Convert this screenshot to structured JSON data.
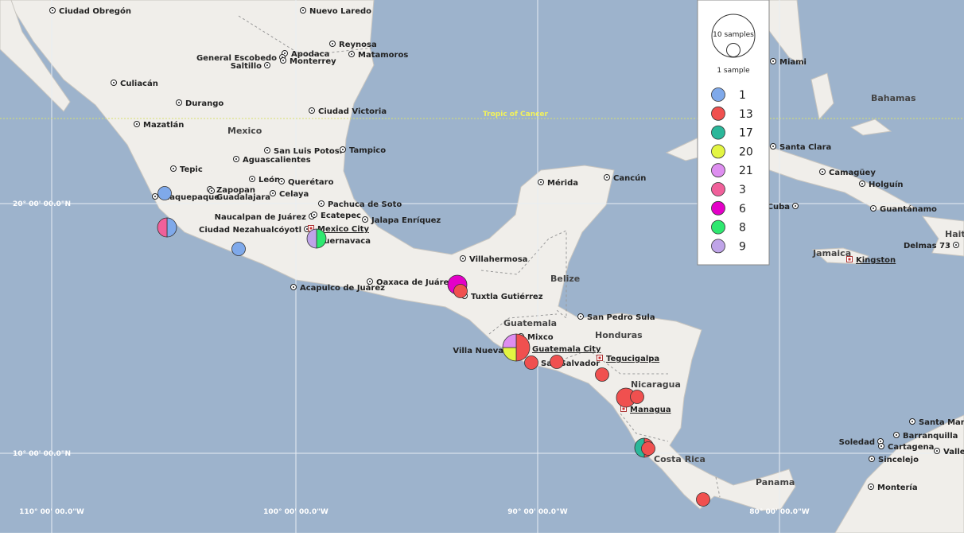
{
  "map": {
    "places": [
      "Ciudad Obregón",
      "Nuevo Laredo",
      "Reynosa",
      "Apodaca",
      "General Escobedo",
      "Monterrey",
      "Saltillo",
      "Matamoros",
      "Culiacán",
      "Durango",
      "Mazatlán",
      "Ciudad Victoria",
      "San Luis Potosí",
      "Tampico",
      "Aguascalientes",
      "Tepic",
      "Zapopan",
      "León",
      "Guadalajara",
      "Querétaro",
      "Celaya",
      "Tlaquepaque",
      "Pachuca de Soto",
      "Naucalpan de Juárez",
      "Ecatepec",
      "Jalapa Enríquez",
      "Ciudad Nezahualcóyotl",
      "Mexico City",
      "Cuernavaca",
      "Acapulco de Juárez",
      "Oaxaca de Juárez",
      "Villahermosa",
      "Tuxtla Gutiérrez",
      "Mérida",
      "Cancún",
      "San Pedro Sula",
      "Mixco",
      "Villa Nueva",
      "Guatemala City",
      "San Salvador",
      "Tegucigalpa",
      "Managua",
      "Miami",
      "Santa Clara",
      "Camagüey",
      "Holguín",
      "Santiago de Cuba",
      "Guantánamo",
      "Kingston",
      "Delmas 73",
      "Soledad",
      "Barranquilla",
      "Cartagena",
      "Santa Marta",
      "Valle",
      "Sincelejo",
      "Montería"
    ],
    "countries": [
      "Mexico",
      "Belize",
      "Guatemala",
      "Honduras",
      "Nicaragua",
      "Costa Rica",
      "Panama",
      "Bahamas",
      "Jamaica",
      "Haiti"
    ],
    "latitudes": [
      "20° 00' 00.0\"N",
      "10° 00' 00.0\"N"
    ],
    "longitudes": [
      "110° 00' 00.0\"W",
      "100° 00' 00.0\"W",
      "90° 00' 00.0\"W",
      "80° 00' 00.0\"W"
    ],
    "tropic": "Tropic of Cancer"
  },
  "legend": {
    "large": "10 samples",
    "small": "1 sample",
    "groups": [
      {
        "label": "1",
        "color": "#7fa9ea"
      },
      {
        "label": "13",
        "color": "#f0504f"
      },
      {
        "label": "17",
        "color": "#2bb79a"
      },
      {
        "label": "20",
        "color": "#e3f542"
      },
      {
        "label": "21",
        "color": "#de8ef0"
      },
      {
        "label": "3",
        "color": "#f0609a"
      },
      {
        "label": "6",
        "color": "#e400c8"
      },
      {
        "label": "8",
        "color": "#2ee870"
      },
      {
        "label": "9",
        "color": "#bfa4e8"
      }
    ]
  },
  "markers": [
    {
      "samples": {
        "1": 1
      }
    },
    {
      "samples": {
        "1": 1,
        "3": 1
      }
    },
    {
      "samples": {
        "1": 1
      }
    },
    {
      "samples": {
        "8": 1,
        "9": 1
      }
    },
    {
      "samples": {
        "6": 2
      }
    },
    {
      "samples": {
        "13": 1
      }
    },
    {
      "samples": {
        "13": 2,
        "20": 1,
        "21": 1
      }
    },
    {
      "samples": {
        "13": 1
      }
    },
    {
      "samples": {
        "13": 1
      }
    },
    {
      "samples": {
        "13": 1
      }
    },
    {
      "samples": {
        "13": 2
      }
    },
    {
      "samples": {
        "13": 1
      }
    },
    {
      "samples": {
        "17": 1,
        "13": 1
      }
    },
    {
      "samples": {
        "13": 1
      }
    },
    {
      "samples": {
        "13": 1
      }
    }
  ]
}
